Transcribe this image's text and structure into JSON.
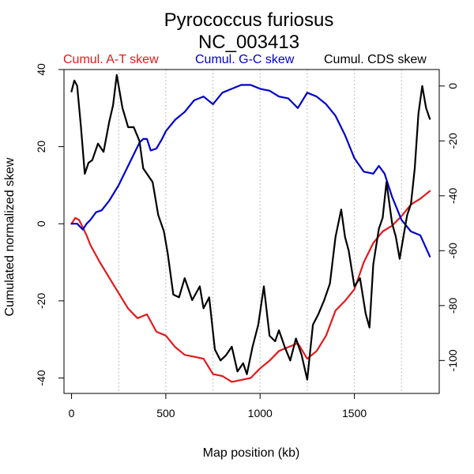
{
  "chart_data": {
    "type": "line",
    "title": "Pyrococcus furiosus",
    "subtitle": "NC_003413",
    "xlabel": "Map position (kb)",
    "ylabel": "Cumulated normalized skew",
    "xlim": [
      -40,
      1950
    ],
    "ylim": [
      -44,
      40
    ],
    "y2lim": [
      -112,
      6
    ],
    "x_ticks": [
      0,
      500,
      1000,
      1500
    ],
    "y_ticks": [
      -40,
      -20,
      0,
      20,
      40
    ],
    "y2_ticks": [
      -100,
      -80,
      -60,
      -40,
      -20,
      0
    ],
    "vgrid": [
      250,
      500,
      750,
      1000,
      1250,
      1500,
      1750
    ],
    "legend_placement": "top",
    "series": [
      {
        "name": "Cumul. A-T skew",
        "color": "#e31a1c",
        "axis": "left",
        "x": [
          0,
          20,
          40,
          60,
          80,
          100,
          150,
          200,
          250,
          300,
          350,
          400,
          450,
          500,
          550,
          600,
          650,
          700,
          750,
          800,
          850,
          900,
          950,
          1000,
          1050,
          1100,
          1150,
          1200,
          1250,
          1300,
          1350,
          1400,
          1450,
          1500,
          1550,
          1600,
          1650,
          1700,
          1750,
          1800,
          1850,
          1900
        ],
        "y": [
          0,
          1.5,
          1.0,
          -1,
          -3,
          -5.5,
          -10,
          -14,
          -18,
          -22,
          -24.5,
          -23.5,
          -28,
          -29,
          -32,
          -34,
          -34.5,
          -35,
          -39,
          -39.5,
          -41,
          -40.5,
          -40,
          -37.5,
          -35.5,
          -33,
          -32,
          -31,
          -35,
          -33,
          -29,
          -22.5,
          -20,
          -17,
          -10,
          -5,
          -2,
          -0.5,
          2,
          5,
          6.5,
          8.5
        ]
      },
      {
        "name": "Cumul. G-C skew",
        "color": "#0000cc",
        "axis": "left",
        "x": [
          0,
          30,
          60,
          80,
          100,
          130,
          160,
          200,
          250,
          300,
          330,
          360,
          380,
          400,
          420,
          450,
          480,
          500,
          550,
          600,
          650,
          700,
          750,
          800,
          850,
          900,
          950,
          1000,
          1050,
          1100,
          1150,
          1200,
          1250,
          1300,
          1350,
          1400,
          1450,
          1500,
          1550,
          1600,
          1630,
          1660,
          1700,
          1750,
          1800,
          1850,
          1900
        ],
        "y": [
          0,
          0,
          -1.5,
          0,
          1,
          3,
          3.5,
          6,
          10,
          15,
          18,
          21,
          22,
          22,
          19,
          19.5,
          22,
          24,
          27,
          29,
          32,
          33,
          31,
          34,
          35,
          36,
          36,
          35,
          34.5,
          33,
          32.5,
          30,
          34,
          33,
          31,
          28,
          23,
          17,
          13.5,
          13,
          15,
          13,
          7,
          1,
          -2,
          -3,
          -8.5
        ]
      },
      {
        "name": "Cumul. CDS skew",
        "color": "#000000",
        "axis": "right",
        "x": [
          0,
          15,
          30,
          50,
          70,
          90,
          110,
          140,
          170,
          200,
          220,
          240,
          270,
          300,
          330,
          360,
          380,
          400,
          430,
          460,
          490,
          510,
          540,
          570,
          600,
          640,
          680,
          700,
          730,
          760,
          790,
          820,
          850,
          880,
          910,
          930,
          960,
          990,
          1020,
          1050,
          1080,
          1100,
          1130,
          1160,
          1190,
          1220,
          1250,
          1280,
          1310,
          1340,
          1370,
          1400,
          1430,
          1450,
          1470,
          1500,
          1530,
          1560,
          1580,
          1600,
          1630,
          1650,
          1670,
          1700,
          1720,
          1740,
          1760,
          1780,
          1800,
          1820,
          1840,
          1860,
          1880,
          1900
        ],
        "y": [
          -2,
          2,
          0,
          -15,
          -32,
          -28,
          -27,
          -21,
          -24,
          -13,
          -7,
          4,
          -8,
          -15,
          -15,
          -20,
          -30,
          -32,
          -35,
          -47,
          -53,
          -61,
          -76,
          -77,
          -70,
          -78,
          -73,
          -81,
          -77,
          -96,
          -100,
          -98,
          -95,
          -104,
          -101,
          -105,
          -95,
          -87,
          -73,
          -91,
          -93,
          -89,
          -95,
          -100,
          -92,
          -98,
          -107,
          -87,
          -83,
          -78,
          -72,
          -55,
          -45,
          -55,
          -60,
          -73,
          -70,
          -83,
          -88,
          -65,
          -52,
          -48,
          -35,
          -50,
          -55,
          -63,
          -55,
          -47,
          -43,
          -30,
          -10,
          0,
          -8,
          -12
        ]
      }
    ]
  }
}
